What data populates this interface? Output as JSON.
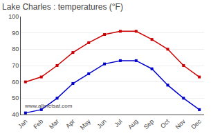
{
  "chart_data": {
    "type": "line",
    "title": "Lake Charles : temperatures (°F)",
    "categories": [
      "Jan",
      "Feb",
      "Mar",
      "Apr",
      "May",
      "Jun",
      "Jul",
      "Aug",
      "Sep",
      "Oct",
      "Nov",
      "Dec"
    ],
    "series": [
      {
        "color": "#cc0000",
        "values": [
          60,
          63,
          70,
          78,
          84,
          89,
          91,
          91,
          86,
          80,
          70,
          63
        ]
      },
      {
        "color": "#0000cc",
        "values": [
          41,
          43,
          50,
          59,
          65,
          71,
          73,
          73,
          68,
          58,
          50,
          43
        ]
      }
    ],
    "marker": "square",
    "line_style": "solid",
    "ylim": [
      40,
      100
    ],
    "yticks": [
      40,
      50,
      60,
      70,
      80,
      90,
      100
    ],
    "grid": true,
    "annotations": [
      "www.allmetsat.com"
    ]
  }
}
